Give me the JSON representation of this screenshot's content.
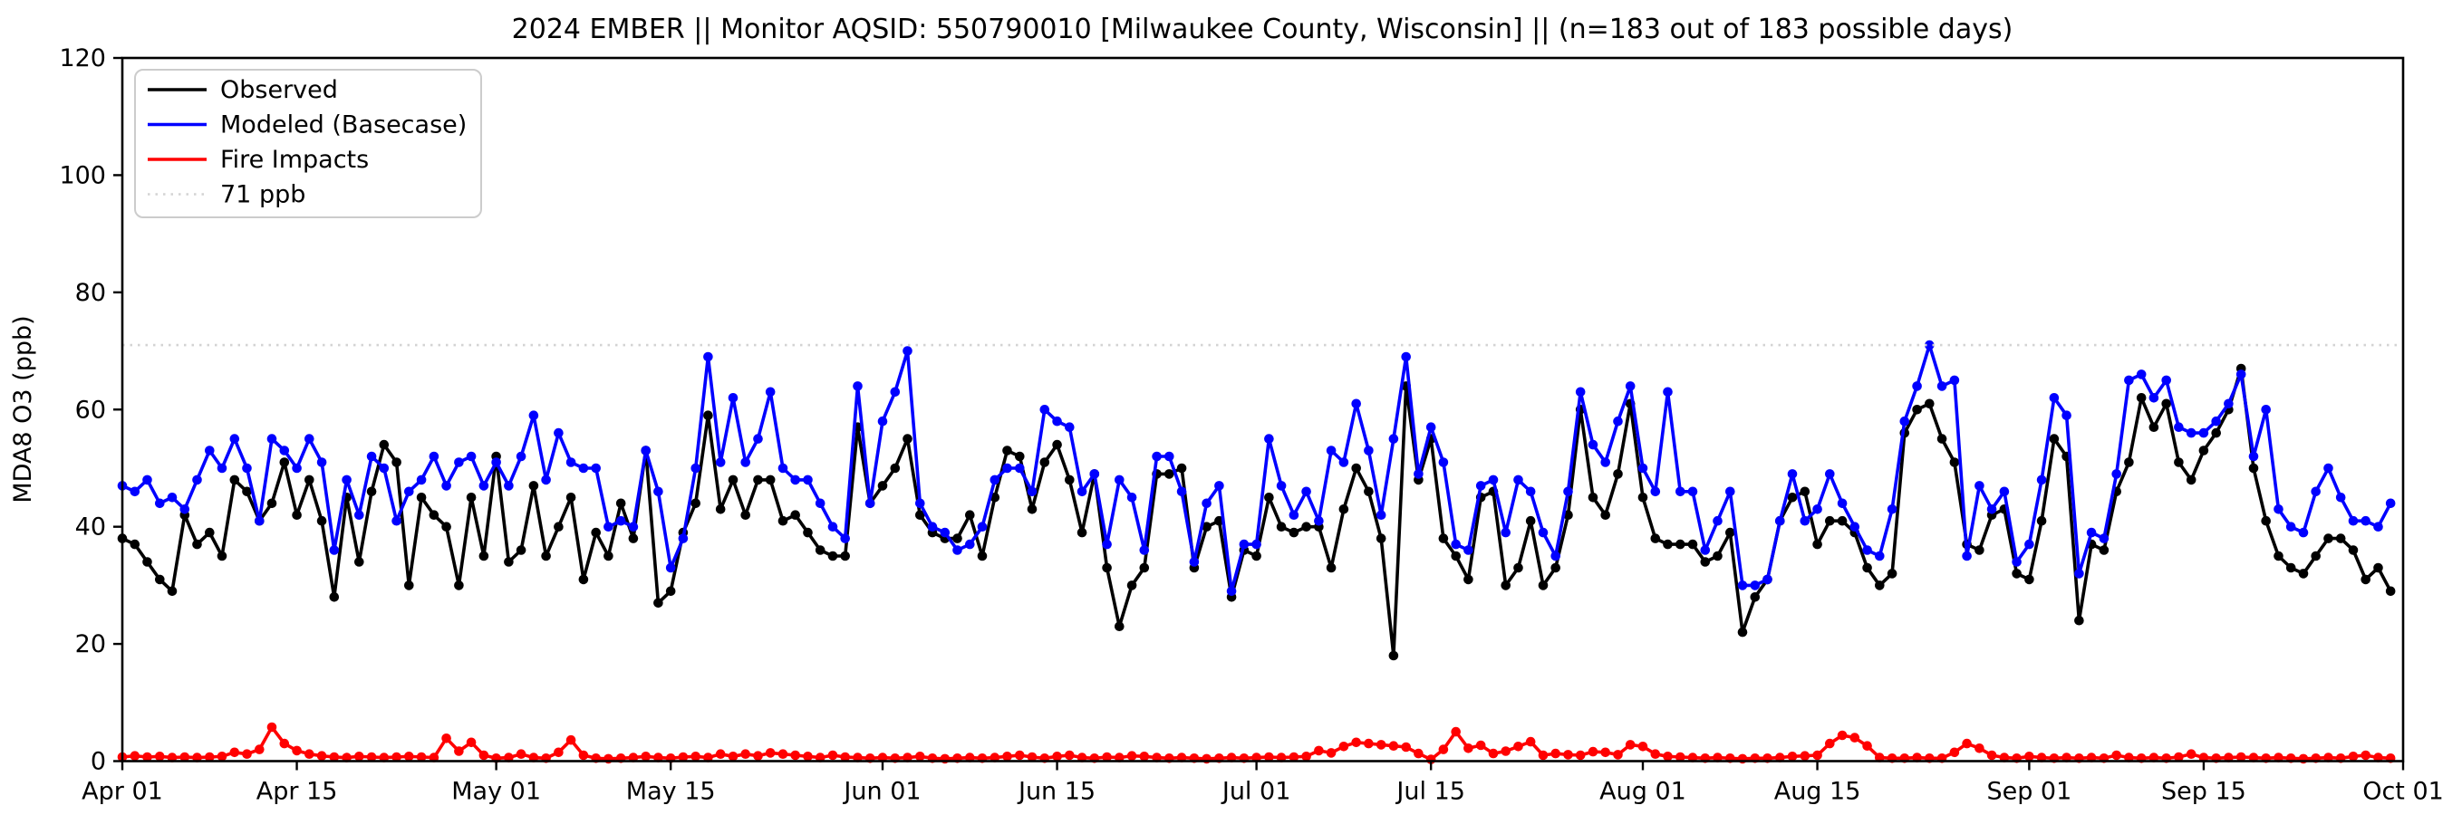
{
  "chart_data": {
    "type": "line",
    "title": "2024 EMBER || Monitor AQSID: 550790010 [Milwaukee County, Wisconsin] || (n=183 out of 183 possible days)",
    "xlabel": "",
    "ylabel": "MDA8 O3 (ppb)",
    "ylim": [
      0,
      120
    ],
    "yticks": [
      0,
      20,
      40,
      60,
      80,
      100,
      120
    ],
    "n_days": 183,
    "date_range": [
      "Apr 01",
      "Oct 01"
    ],
    "x_tick_labels": [
      "Apr 01",
      "Apr 15",
      "May 01",
      "May 15",
      "Jun 01",
      "Jun 15",
      "Jul 01",
      "Jul 15",
      "Aug 01",
      "Aug 15",
      "Sep 01",
      "Sep 15",
      "Oct 01"
    ],
    "x_tick_day_index": [
      0,
      14,
      30,
      44,
      61,
      75,
      91,
      105,
      122,
      136,
      153,
      167,
      183
    ],
    "grid": false,
    "legend_position": "upper-left",
    "threshold": {
      "value": 71,
      "label": "71 ppb",
      "color": "#d3d3d3",
      "style": "dotted"
    },
    "legend": [
      {
        "label": "Observed",
        "color": "#000000",
        "style": "solid"
      },
      {
        "label": "Modeled (Basecase)",
        "color": "#0000ff",
        "style": "solid"
      },
      {
        "label": "Fire Impacts",
        "color": "#ff0000",
        "style": "solid"
      },
      {
        "label": "71 ppb",
        "color": "#d3d3d3",
        "style": "dotted"
      }
    ],
    "series": [
      {
        "name": "Observed",
        "color": "#000000",
        "values": [
          38,
          37,
          34,
          31,
          29,
          42,
          37,
          39,
          35,
          48,
          46,
          41,
          44,
          51,
          42,
          48,
          41,
          28,
          45,
          34,
          46,
          54,
          51,
          30,
          45,
          42,
          40,
          30,
          45,
          35,
          52,
          34,
          36,
          47,
          35,
          40,
          45,
          31,
          39,
          35,
          44,
          38,
          53,
          27,
          29,
          39,
          44,
          59,
          43,
          48,
          42,
          48,
          48,
          41,
          42,
          39,
          36,
          35,
          35,
          57,
          44,
          47,
          50,
          55,
          42,
          39,
          38,
          38,
          42,
          35,
          45,
          53,
          52,
          43,
          51,
          54,
          48,
          39,
          49,
          33,
          23,
          30,
          33,
          49,
          49,
          50,
          33,
          40,
          41,
          28,
          36,
          35,
          45,
          40,
          39,
          40,
          40,
          33,
          43,
          50,
          46,
          38,
          18,
          64,
          48,
          55,
          38,
          35,
          31,
          45,
          46,
          30,
          33,
          41,
          30,
          33,
          42,
          60,
          45,
          42,
          49,
          61,
          45,
          38,
          37,
          37,
          37,
          34,
          35,
          39,
          22,
          28,
          31,
          41,
          45,
          46,
          37,
          41,
          41,
          39,
          33,
          30,
          32,
          56,
          60,
          61,
          55,
          51,
          37,
          36,
          42,
          43,
          32,
          31,
          41,
          55,
          52,
          24,
          37,
          36,
          46,
          51,
          62,
          57,
          61,
          51,
          48,
          53,
          56,
          60,
          67,
          50,
          41,
          35,
          33,
          32,
          35,
          38,
          38,
          36,
          31,
          33,
          29
        ]
      },
      {
        "name": "Modeled (Basecase)",
        "color": "#0000ff",
        "values": [
          47,
          46,
          48,
          44,
          45,
          43,
          48,
          53,
          50,
          55,
          50,
          41,
          55,
          53,
          50,
          55,
          51,
          36,
          48,
          42,
          52,
          50,
          41,
          46,
          48,
          52,
          47,
          51,
          52,
          47,
          51,
          47,
          52,
          59,
          48,
          56,
          51,
          50,
          50,
          40,
          41,
          40,
          53,
          46,
          33,
          38,
          50,
          69,
          51,
          62,
          51,
          55,
          63,
          50,
          48,
          48,
          44,
          40,
          38,
          64,
          44,
          58,
          63,
          70,
          44,
          40,
          39,
          36,
          37,
          40,
          48,
          50,
          50,
          46,
          60,
          58,
          57,
          46,
          49,
          37,
          48,
          45,
          36,
          52,
          52,
          46,
          34,
          44,
          47,
          29,
          37,
          37,
          55,
          47,
          42,
          46,
          41,
          53,
          51,
          61,
          53,
          42,
          55,
          69,
          49,
          57,
          51,
          37,
          36,
          47,
          48,
          39,
          48,
          46,
          39,
          35,
          46,
          63,
          54,
          51,
          58,
          64,
          50,
          46,
          63,
          46,
          46,
          36,
          41,
          46,
          30,
          30,
          31,
          41,
          49,
          41,
          43,
          49,
          44,
          40,
          36,
          35,
          43,
          58,
          64,
          71,
          64,
          65,
          35,
          47,
          43,
          46,
          34,
          37,
          48,
          62,
          59,
          32,
          39,
          38,
          49,
          65,
          66,
          62,
          65,
          57,
          56,
          56,
          58,
          61,
          66,
          52,
          60,
          43,
          40,
          39,
          46,
          50,
          45,
          41,
          41,
          40,
          44
        ]
      },
      {
        "name": "Fire Impacts",
        "color": "#ff0000",
        "values": [
          0.7,
          0.9,
          0.7,
          0.8,
          0.6,
          0.7,
          0.6,
          0.7,
          0.8,
          1.5,
          1.2,
          2.0,
          5.8,
          3.0,
          1.8,
          1.2,
          0.9,
          0.7,
          0.6,
          0.8,
          0.7,
          0.6,
          0.7,
          0.8,
          0.7,
          0.6,
          3.9,
          1.7,
          3.2,
          1.0,
          0.5,
          0.6,
          1.2,
          0.6,
          0.5,
          1.5,
          3.6,
          1.0,
          0.5,
          0.4,
          0.5,
          0.6,
          0.8,
          0.6,
          0.5,
          0.7,
          0.8,
          0.6,
          1.2,
          0.8,
          1.2,
          0.9,
          1.4,
          1.2,
          1.0,
          0.8,
          0.6,
          1.0,
          0.7,
          0.6,
          0.5,
          0.6,
          0.5,
          0.6,
          0.8,
          0.5,
          0.4,
          0.5,
          0.6,
          0.5,
          0.6,
          0.8,
          1.0,
          0.7,
          0.5,
          0.8,
          1.0,
          0.6,
          0.5,
          0.7,
          0.6,
          0.9,
          0.8,
          0.6,
          0.5,
          0.6,
          0.5,
          0.4,
          0.5,
          0.6,
          0.5,
          0.6,
          0.7,
          0.6,
          0.7,
          0.8,
          1.8,
          1.4,
          2.5,
          3.2,
          3.0,
          2.8,
          2.6,
          2.4,
          1.3,
          0.3,
          2.0,
          5.0,
          2.2,
          2.7,
          1.3,
          1.7,
          2.5,
          3.3,
          1.0,
          1.3,
          1.1,
          1.0,
          1.6,
          1.5,
          1.1,
          2.8,
          2.5,
          1.2,
          0.8,
          0.7,
          0.6,
          0.5,
          0.6,
          0.5,
          0.4,
          0.5,
          0.5,
          0.6,
          0.8,
          0.9,
          1.0,
          3.0,
          4.4,
          4.0,
          2.6,
          0.6,
          0.5,
          0.5,
          0.6,
          0.5,
          0.5,
          1.5,
          3.0,
          2.2,
          1.0,
          0.6,
          0.5,
          0.8,
          0.6,
          0.5,
          0.6,
          0.5,
          0.6,
          0.5,
          1.0,
          0.6,
          0.5,
          0.6,
          0.5,
          0.7,
          1.2,
          0.6,
          0.5,
          0.6,
          0.7,
          0.6,
          0.5,
          0.6,
          0.5,
          0.4,
          0.5,
          0.6,
          0.5,
          0.8,
          1.0,
          0.6,
          0.5
        ]
      }
    ]
  }
}
